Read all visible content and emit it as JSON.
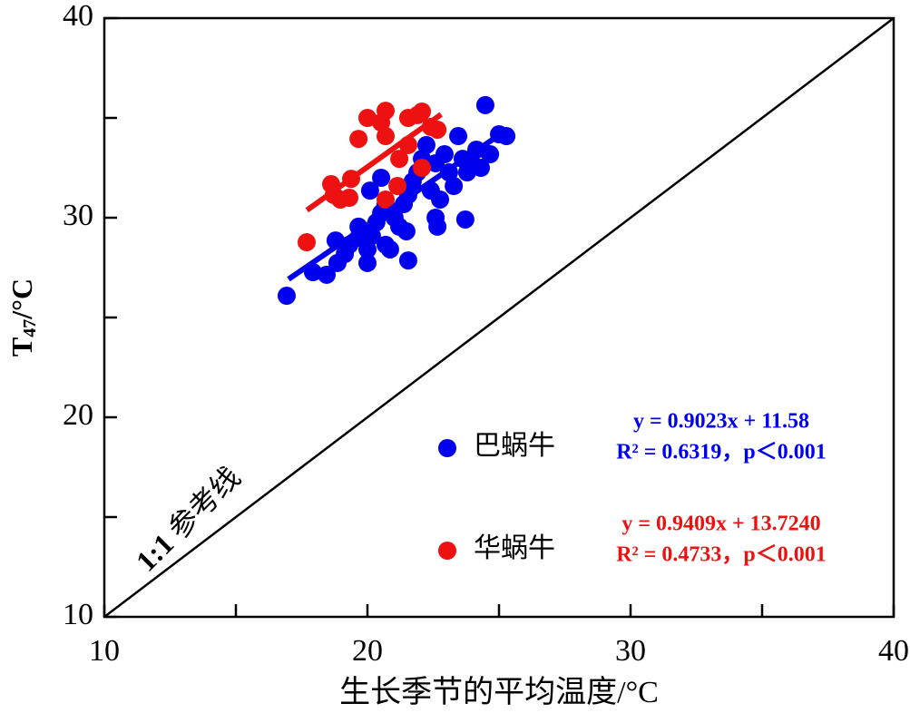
{
  "chart_data": {
    "type": "scatter",
    "x_label": "生长季节的平均温度/°C",
    "y_label": {
      "main": "T",
      "sub": "47",
      "unit": "/°C"
    },
    "xlim": [
      10,
      40
    ],
    "ylim": [
      10,
      40
    ],
    "xticks": [
      10,
      20,
      30,
      40
    ],
    "yticks": [
      10,
      20,
      30,
      40
    ],
    "xminor": [
      15,
      25,
      35
    ],
    "yminor": [
      15,
      25,
      35
    ],
    "reference_line": {
      "label_bold": "1:1",
      "label": "参考线"
    },
    "series": [
      {
        "name": "巴蜗牛",
        "color": "#0000ee",
        "x": [
          16.93,
          17.93,
          18.45,
          18.86,
          19.14,
          18.79,
          19.31,
          19.66,
          20.0,
          20.17,
          20.34,
          20.52,
          20.69,
          20.86,
          20.69,
          21.03,
          21.21,
          21.48,
          21.55,
          21.38,
          21.55,
          21.72,
          20.1,
          20.52,
          21.9,
          22.07,
          22.24,
          22.41,
          22.59,
          22.66,
          22.76,
          22.59,
          22.93,
          23.1,
          23.28,
          23.45,
          23.62,
          23.72,
          23.79,
          23.97,
          24.14,
          24.31,
          24.48,
          24.66,
          25.0,
          25.28,
          20.0,
          19.66
        ],
        "values": [
          26.09,
          27.27,
          27.14,
          27.73,
          28.18,
          28.86,
          28.64,
          29.0,
          28.41,
          29.09,
          29.77,
          30.23,
          28.64,
          28.41,
          30.68,
          30.0,
          29.55,
          29.32,
          27.86,
          30.68,
          31.14,
          31.82,
          31.36,
          32.0,
          32.27,
          32.95,
          33.64,
          31.36,
          30.0,
          29.55,
          30.91,
          32.73,
          33.18,
          32.27,
          31.59,
          34.09,
          32.95,
          29.91,
          32.27,
          32.73,
          33.41,
          32.5,
          35.64,
          33.18,
          34.18,
          34.09,
          27.73,
          29.55
        ],
        "fit": {
          "slope": 0.9023,
          "intercept": 11.58,
          "x_range": [
            17.0,
            25.1
          ]
        },
        "equation": "y = 0.9023x + 11.58",
        "stats": "R² = 0.6319，p＜0.001"
      },
      {
        "name": "华蜗牛",
        "color": "#ee1111",
        "x": [
          17.69,
          18.62,
          18.72,
          18.97,
          19.31,
          19.38,
          19.66,
          20.0,
          20.52,
          20.69,
          20.69,
          20.69,
          21.14,
          21.21,
          21.55,
          21.55,
          21.9,
          22.07,
          22.07,
          22.66,
          22.41
        ],
        "values": [
          28.77,
          31.68,
          31.14,
          30.91,
          31.0,
          31.95,
          33.95,
          35.0,
          34.77,
          35.36,
          34.09,
          30.91,
          31.59,
          32.95,
          33.64,
          35.0,
          35.14,
          35.32,
          32.5,
          34.41,
          34.55
        ],
        "fit": {
          "slope": 0.9409,
          "intercept": 13.724,
          "x_range": [
            17.7,
            22.8
          ]
        },
        "equation": "y = 0.9409x + 13.7240",
        "stats": "R² = 0.4733，p＜0.001"
      }
    ]
  }
}
